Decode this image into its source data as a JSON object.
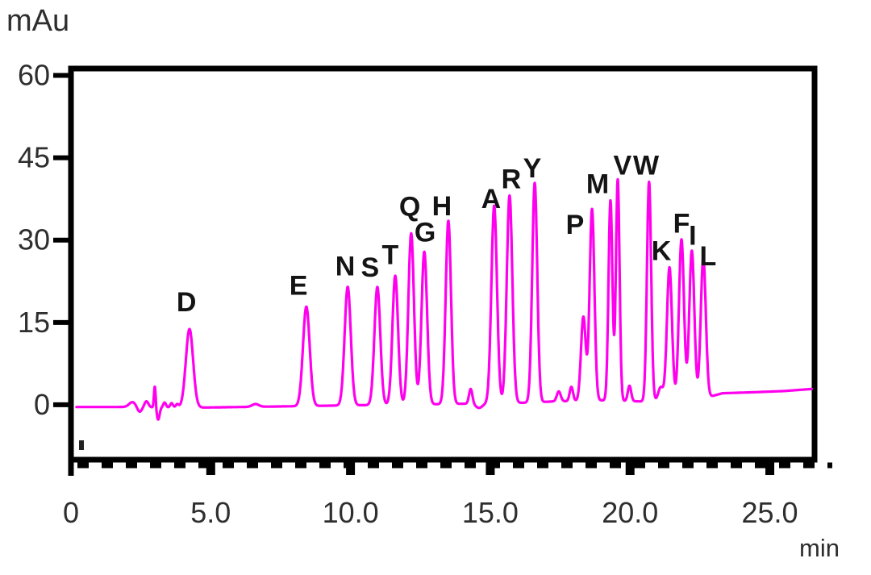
{
  "chart_data": {
    "type": "line",
    "kind": "chromatogram",
    "title": "",
    "xlabel": "min",
    "ylabel": "mAu",
    "xlim": [
      0,
      26.6
    ],
    "ylim": [
      -10,
      61.25
    ],
    "grid": false,
    "legend": false,
    "trace_color": "#FF00EE",
    "axis_color": "#000000",
    "tick_label_color": "#2e2e2e",
    "x_ticks_major": [
      0,
      5,
      10,
      15,
      20,
      25
    ],
    "x_tick_labels": [
      "0",
      "5.0",
      "10.0",
      "15.0",
      "20.0",
      "25.0"
    ],
    "x_minor_tick_interval": 1,
    "y_ticks": [
      0,
      15,
      30,
      45,
      60
    ],
    "y_tick_labels": [
      "0",
      "15",
      "30",
      "45",
      "60"
    ],
    "peaks": [
      {
        "label": "D",
        "t": 4.24,
        "h": 14.3,
        "sigma": 0.13,
        "label_at": [
          4.13,
          18.8
        ]
      },
      {
        "label": "E",
        "t": 8.42,
        "h": 18.1,
        "sigma": 0.12,
        "label_at": [
          8.14,
          21.8
        ]
      },
      {
        "label": "N",
        "t": 9.9,
        "h": 21.6,
        "sigma": 0.11,
        "label_at": [
          9.81,
          25.3
        ]
      },
      {
        "label": "S",
        "t": 10.96,
        "h": 21.5,
        "sigma": 0.105,
        "label_at": [
          10.7,
          25.1
        ]
      },
      {
        "label": "T",
        "t": 11.6,
        "h": 23.5,
        "sigma": 0.1,
        "label_at": [
          11.42,
          27.4
        ]
      },
      {
        "label": "Q",
        "t": 12.17,
        "h": 31.2,
        "sigma": 0.1,
        "label_at": [
          12.12,
          36.2
        ]
      },
      {
        "label": "G",
        "t": 12.64,
        "h": 27.8,
        "sigma": 0.1,
        "label_at": [
          12.67,
          31.5
        ]
      },
      {
        "label": "H",
        "t": 13.5,
        "h": 33.4,
        "sigma": 0.095,
        "label_at": [
          13.27,
          36.3
        ]
      },
      {
        "label": "A",
        "t": 15.14,
        "h": 36.0,
        "sigma": 0.1,
        "label_at": [
          15.03,
          37.6
        ]
      },
      {
        "label": "R",
        "t": 15.69,
        "h": 37.8,
        "sigma": 0.1,
        "label_at": [
          15.75,
          41.2
        ]
      },
      {
        "label": "Y",
        "t": 16.59,
        "h": 40.0,
        "sigma": 0.09,
        "label_at": [
          16.5,
          43.2
        ]
      },
      {
        "label": "P",
        "t": 18.64,
        "h": 34.9,
        "sigma": 0.085,
        "label_at": [
          18.03,
          32.9
        ]
      },
      {
        "label": "M",
        "t": 19.3,
        "h": 36.5,
        "sigma": 0.07,
        "label_at": [
          18.84,
          40.3
        ]
      },
      {
        "label": "V",
        "t": 19.56,
        "h": 40.3,
        "sigma": 0.065,
        "label_at": [
          19.73,
          43.7
        ]
      },
      {
        "label": "W",
        "t": 20.68,
        "h": 40.0,
        "sigma": 0.075,
        "label_at": [
          20.57,
          43.7
        ]
      },
      {
        "label": "K",
        "t": 21.41,
        "h": 24.3,
        "sigma": 0.09,
        "label_at": [
          21.12,
          28.1
        ]
      },
      {
        "label": "F",
        "t": 21.84,
        "h": 29.3,
        "sigma": 0.09,
        "label_at": [
          21.84,
          33.1
        ]
      },
      {
        "label": "I",
        "t": 22.21,
        "h": 27.2,
        "sigma": 0.09,
        "label_at": [
          22.24,
          30.9
        ]
      },
      {
        "label": "L",
        "t": 22.62,
        "h": 25.6,
        "sigma": 0.09,
        "label_at": [
          22.79,
          27.2
        ]
      }
    ],
    "minor_features": [
      {
        "t": 2.2,
        "h": 0.9,
        "sigma": 0.12
      },
      {
        "t": 2.45,
        "h": -0.9,
        "sigma": 0.08
      },
      {
        "t": 2.7,
        "h": 1.1,
        "sigma": 0.07
      },
      {
        "t": 3.0,
        "h": 3.9,
        "sigma": 0.03
      },
      {
        "t": 3.12,
        "h": -2.2,
        "sigma": 0.05
      },
      {
        "t": 3.35,
        "h": 0.9,
        "sigma": 0.05
      },
      {
        "t": 3.6,
        "h": 0.8,
        "sigma": 0.05
      },
      {
        "t": 3.8,
        "h": 0.6,
        "sigma": 0.05
      },
      {
        "t": 6.6,
        "h": 0.5,
        "sigma": 0.12
      },
      {
        "t": 14.3,
        "h": 2.7,
        "sigma": 0.06
      },
      {
        "t": 14.6,
        "h": -0.8,
        "sigma": 0.12
      },
      {
        "t": 17.45,
        "h": 1.8,
        "sigma": 0.07
      },
      {
        "t": 17.9,
        "h": 2.6,
        "sigma": 0.06
      },
      {
        "t": 18.33,
        "h": 15.3,
        "sigma": 0.085
      },
      {
        "t": 19.98,
        "h": 2.8,
        "sigma": 0.06
      },
      {
        "t": 21.1,
        "h": 2.5,
        "sigma": 0.09
      }
    ],
    "baseline_points": [
      [
        0,
        -0.4
      ],
      [
        2.0,
        -0.4
      ],
      [
        3.3,
        -0.5
      ],
      [
        4.8,
        -0.5
      ],
      [
        7.5,
        -0.3
      ],
      [
        10,
        -0.1
      ],
      [
        13,
        0.1
      ],
      [
        16.5,
        0.4
      ],
      [
        17.2,
        0.6
      ],
      [
        19,
        0.8
      ],
      [
        20.5,
        0.6
      ],
      [
        22.3,
        0.9
      ],
      [
        22.95,
        1.6
      ],
      [
        23.3,
        2.1
      ],
      [
        24.5,
        2.3
      ],
      [
        25.5,
        2.5
      ],
      [
        26.55,
        2.9
      ]
    ],
    "trace_start_t": 0.2,
    "trace_end_t": 26.5
  }
}
